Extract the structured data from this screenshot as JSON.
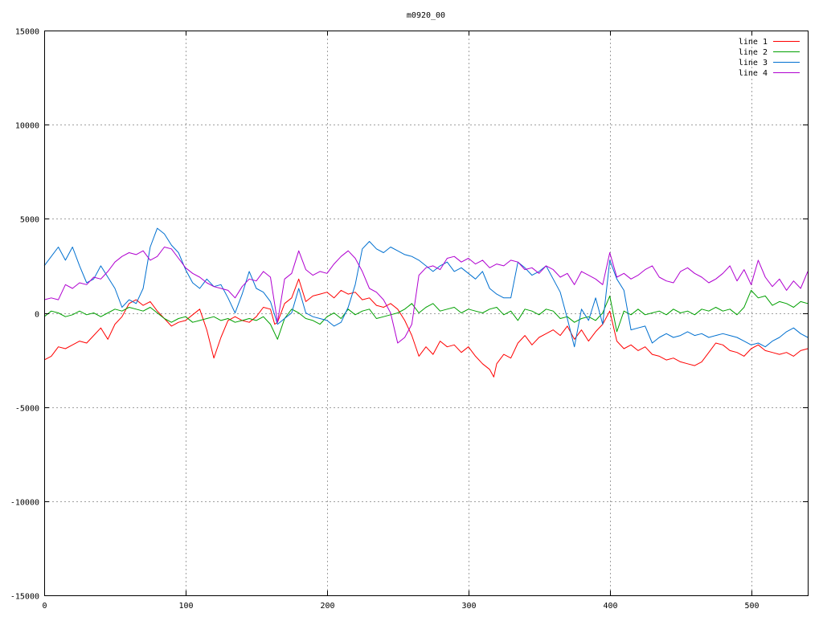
{
  "chart_data": {
    "type": "line",
    "title": "m0920_00",
    "xlabel": "",
    "ylabel": "",
    "xlim": [
      0,
      540
    ],
    "ylim": [
      -15000,
      15000
    ],
    "x_ticks": [
      0,
      100,
      200,
      300,
      400,
      500
    ],
    "y_ticks": [
      15000,
      10000,
      5000,
      0,
      -5000,
      -10000,
      -15000
    ],
    "grid": true,
    "legend_position": "top-right",
    "series": [
      {
        "name": "line 1",
        "color": "#ff0000",
        "x": [
          0,
          5,
          10,
          15,
          20,
          25,
          30,
          35,
          40,
          45,
          50,
          55,
          60,
          65,
          70,
          75,
          80,
          85,
          90,
          95,
          100,
          105,
          110,
          115,
          120,
          125,
          130,
          135,
          140,
          145,
          150,
          155,
          160,
          163,
          165,
          170,
          175,
          180,
          185,
          190,
          195,
          200,
          205,
          210,
          215,
          220,
          225,
          230,
          235,
          240,
          245,
          250,
          255,
          260,
          265,
          270,
          275,
          280,
          285,
          290,
          295,
          300,
          305,
          310,
          315,
          318,
          320,
          325,
          330,
          335,
          340,
          345,
          350,
          355,
          360,
          365,
          370,
          375,
          380,
          385,
          390,
          395,
          400,
          405,
          410,
          415,
          420,
          425,
          430,
          435,
          440,
          445,
          450,
          455,
          460,
          465,
          470,
          475,
          480,
          485,
          490,
          495,
          500,
          505,
          510,
          515,
          520,
          525,
          530,
          535,
          540
        ],
        "values": [
          -2500,
          -2300,
          -1800,
          -1900,
          -1700,
          -1500,
          -1600,
          -1200,
          -800,
          -1400,
          -600,
          -200,
          500,
          700,
          400,
          600,
          100,
          -300,
          -700,
          -500,
          -400,
          -100,
          200,
          -900,
          -2400,
          -1300,
          -400,
          -200,
          -400,
          -500,
          -200,
          300,
          200,
          -600,
          -500,
          500,
          800,
          1800,
          600,
          900,
          1000,
          1100,
          800,
          1200,
          1000,
          1100,
          700,
          800,
          400,
          300,
          500,
          200,
          -400,
          -1200,
          -2300,
          -1800,
          -2200,
          -1500,
          -1800,
          -1700,
          -2100,
          -1800,
          -2300,
          -2700,
          -3000,
          -3400,
          -2700,
          -2200,
          -2400,
          -1600,
          -1200,
          -1700,
          -1300,
          -1100,
          -900,
          -1200,
          -700,
          -1400,
          -900,
          -1500,
          -1000,
          -600,
          100,
          -1500,
          -1900,
          -1700,
          -2000,
          -1800,
          -2200,
          -2300,
          -2500,
          -2400,
          -2600,
          -2700,
          -2800,
          -2600,
          -2100,
          -1600,
          -1700,
          -2000,
          -2100,
          -2300,
          -1900,
          -1700,
          -2000,
          -2100,
          -2200,
          -2100,
          -2300,
          -2000,
          -1900
        ]
      },
      {
        "name": "line 2",
        "color": "#00a000",
        "x": [
          0,
          5,
          10,
          15,
          20,
          25,
          30,
          35,
          40,
          45,
          50,
          55,
          60,
          65,
          70,
          75,
          80,
          85,
          90,
          95,
          100,
          105,
          110,
          115,
          120,
          125,
          130,
          135,
          140,
          145,
          150,
          155,
          160,
          165,
          170,
          175,
          180,
          185,
          190,
          195,
          200,
          205,
          210,
          215,
          220,
          225,
          230,
          235,
          240,
          245,
          250,
          255,
          260,
          265,
          270,
          275,
          280,
          285,
          290,
          295,
          300,
          305,
          310,
          315,
          320,
          325,
          330,
          335,
          340,
          345,
          350,
          355,
          360,
          365,
          370,
          375,
          380,
          385,
          390,
          395,
          400,
          405,
          410,
          415,
          420,
          425,
          430,
          435,
          440,
          445,
          450,
          455,
          460,
          465,
          470,
          475,
          480,
          485,
          490,
          495,
          500,
          505,
          510,
          515,
          520,
          525,
          530,
          535,
          540
        ],
        "values": [
          -200,
          100,
          0,
          -200,
          -100,
          100,
          -100,
          0,
          -200,
          0,
          200,
          100,
          300,
          200,
          100,
          300,
          0,
          -300,
          -500,
          -300,
          -200,
          -500,
          -400,
          -300,
          -200,
          -400,
          -300,
          -500,
          -400,
          -300,
          -400,
          -200,
          -600,
          -1400,
          -300,
          200,
          0,
          -300,
          -400,
          -600,
          -200,
          0,
          -300,
          200,
          -100,
          100,
          200,
          -300,
          -200,
          -100,
          0,
          200,
          500,
          0,
          300,
          500,
          100,
          200,
          300,
          0,
          200,
          100,
          0,
          200,
          300,
          -100,
          100,
          -400,
          200,
          100,
          -100,
          200,
          100,
          -300,
          -200,
          -500,
          -300,
          -200,
          -400,
          0,
          900,
          -1000,
          100,
          -100,
          200,
          -100,
          0,
          100,
          -100,
          200,
          0,
          100,
          -100,
          200,
          100,
          300,
          100,
          200,
          -100,
          300,
          1200,
          800,
          900,
          400,
          600,
          500,
          300,
          600,
          500
        ]
      },
      {
        "name": "line 3",
        "color": "#0070d0",
        "x": [
          0,
          5,
          10,
          15,
          20,
          25,
          30,
          35,
          40,
          45,
          50,
          55,
          60,
          65,
          70,
          75,
          80,
          85,
          90,
          95,
          100,
          105,
          110,
          115,
          120,
          125,
          130,
          135,
          140,
          145,
          150,
          155,
          160,
          165,
          170,
          175,
          180,
          185,
          190,
          195,
          200,
          205,
          210,
          215,
          220,
          225,
          230,
          235,
          240,
          245,
          250,
          255,
          260,
          265,
          270,
          275,
          280,
          285,
          290,
          295,
          300,
          305,
          310,
          315,
          320,
          325,
          330,
          335,
          340,
          345,
          350,
          355,
          360,
          365,
          370,
          375,
          380,
          385,
          390,
          395,
          400,
          405,
          410,
          415,
          420,
          425,
          430,
          435,
          440,
          445,
          450,
          455,
          460,
          465,
          470,
          475,
          480,
          485,
          490,
          495,
          500,
          505,
          510,
          515,
          520,
          525,
          530,
          535,
          540
        ],
        "values": [
          2500,
          3000,
          3500,
          2800,
          3500,
          2500,
          1600,
          1800,
          2500,
          1900,
          1300,
          300,
          700,
          500,
          1300,
          3500,
          4500,
          4200,
          3600,
          3200,
          2300,
          1600,
          1300,
          1800,
          1400,
          1500,
          800,
          0,
          1000,
          2200,
          1300,
          1100,
          600,
          -600,
          -300,
          0,
          1300,
          0,
          -200,
          -300,
          -400,
          -700,
          -500,
          300,
          1500,
          3400,
          3800,
          3400,
          3200,
          3500,
          3300,
          3100,
          3000,
          2800,
          2500,
          2200,
          2500,
          2700,
          2200,
          2400,
          2100,
          1800,
          2200,
          1300,
          1000,
          800,
          800,
          2700,
          2400,
          2000,
          2200,
          2500,
          1800,
          1100,
          -300,
          -1800,
          200,
          -400,
          800,
          -600,
          2800,
          1800,
          1200,
          -900,
          -800,
          -700,
          -1600,
          -1300,
          -1100,
          -1300,
          -1200,
          -1000,
          -1200,
          -1100,
          -1300,
          -1200,
          -1100,
          -1200,
          -1300,
          -1500,
          -1700,
          -1600,
          -1800,
          -1500,
          -1300,
          -1000,
          -800,
          -1100,
          -1300
        ]
      },
      {
        "name": "line 4",
        "color": "#b000d0",
        "x": [
          0,
          5,
          10,
          15,
          20,
          25,
          30,
          35,
          40,
          45,
          50,
          55,
          60,
          65,
          70,
          75,
          80,
          85,
          90,
          95,
          100,
          105,
          110,
          115,
          120,
          125,
          130,
          135,
          140,
          145,
          150,
          155,
          160,
          165,
          170,
          175,
          180,
          185,
          190,
          195,
          200,
          205,
          210,
          215,
          220,
          225,
          230,
          235,
          240,
          245,
          250,
          255,
          260,
          265,
          270,
          275,
          280,
          285,
          290,
          295,
          300,
          305,
          310,
          315,
          320,
          325,
          330,
          335,
          340,
          345,
          350,
          355,
          360,
          365,
          370,
          375,
          380,
          385,
          390,
          395,
          400,
          405,
          410,
          415,
          420,
          425,
          430,
          435,
          440,
          445,
          450,
          455,
          460,
          465,
          470,
          475,
          480,
          485,
          490,
          495,
          500,
          505,
          510,
          515,
          520,
          525,
          530,
          535,
          540
        ],
        "values": [
          700,
          800,
          700,
          1500,
          1300,
          1600,
          1500,
          1900,
          1800,
          2200,
          2700,
          3000,
          3200,
          3100,
          3300,
          2800,
          3000,
          3500,
          3400,
          2900,
          2400,
          2100,
          1900,
          1600,
          1400,
          1300,
          1200,
          800,
          1400,
          1800,
          1700,
          2200,
          1900,
          -500,
          1800,
          2100,
          3300,
          2300,
          2000,
          2200,
          2100,
          2600,
          3000,
          3300,
          2900,
          2200,
          1300,
          1100,
          700,
          0,
          -1600,
          -1300,
          -600,
          2000,
          2400,
          2500,
          2300,
          2900,
          3000,
          2700,
          2900,
          2600,
          2800,
          2400,
          2600,
          2500,
          2800,
          2700,
          2300,
          2400,
          2100,
          2500,
          2300,
          1900,
          2100,
          1500,
          2200,
          2000,
          1800,
          1500,
          3200,
          1900,
          2100,
          1800,
          2000,
          2300,
          2500,
          1900,
          1700,
          1600,
          2200,
          2400,
          2100,
          1900,
          1600,
          1800,
          2100,
          2500,
          1700,
          2300,
          1500,
          2800,
          1900,
          1400,
          1800,
          1200,
          1700,
          1300,
          2200
        ]
      }
    ]
  }
}
